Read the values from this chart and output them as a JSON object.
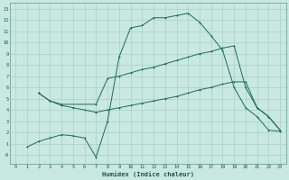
{
  "xlabel": "Humidex (Indice chaleur)",
  "bg_color": "#c8e8e0",
  "grid_color": "#b0d4cc",
  "line_color": "#1a6b5a",
  "xlim": [
    -0.5,
    23.5
  ],
  "ylim": [
    -0.8,
    13.5
  ],
  "xticks": [
    0,
    1,
    2,
    3,
    4,
    5,
    6,
    7,
    8,
    9,
    10,
    11,
    12,
    13,
    14,
    15,
    16,
    17,
    18,
    19,
    20,
    21,
    22,
    23
  ],
  "yticks": [
    0,
    1,
    2,
    3,
    4,
    5,
    6,
    7,
    8,
    9,
    10,
    11,
    12,
    13
  ],
  "ytick_labels": [
    "-0",
    "1",
    "2",
    "3",
    "4",
    "5",
    "6",
    "7",
    "8",
    "9",
    "10",
    "11",
    "12",
    "13"
  ],
  "line1_x": [
    1,
    2,
    3,
    4,
    5,
    6,
    7,
    8,
    9,
    10,
    11,
    12,
    13,
    14,
    15,
    16,
    17,
    18,
    19,
    20,
    21,
    22,
    23
  ],
  "line1_y": [
    0.7,
    1.2,
    1.5,
    1.8,
    1.7,
    1.5,
    -0.2,
    3.0,
    8.7,
    11.3,
    11.5,
    12.2,
    12.2,
    12.4,
    12.6,
    11.8,
    10.6,
    9.3,
    6.0,
    4.2,
    3.4,
    2.2,
    2.1
  ],
  "line2_x": [
    2,
    3,
    4,
    7,
    8,
    9,
    10,
    11,
    12,
    13,
    14,
    15,
    16,
    17,
    18,
    19,
    20,
    21,
    22,
    23
  ],
  "line2_y": [
    5.5,
    4.8,
    4.5,
    4.5,
    6.8,
    7.0,
    7.3,
    7.6,
    7.8,
    8.1,
    8.4,
    8.7,
    9.0,
    9.2,
    9.5,
    9.7,
    6.0,
    4.2,
    3.4,
    2.2
  ],
  "line3_x": [
    2,
    3,
    4,
    5,
    6,
    7,
    8,
    9,
    10,
    11,
    12,
    13,
    14,
    15,
    16,
    17,
    18,
    19,
    20,
    21,
    22,
    23
  ],
  "line3_y": [
    5.5,
    4.8,
    4.4,
    4.2,
    4.0,
    3.8,
    4.0,
    4.2,
    4.4,
    4.6,
    4.8,
    5.0,
    5.2,
    5.5,
    5.8,
    6.0,
    6.3,
    6.5,
    6.5,
    4.2,
    3.4,
    2.2
  ]
}
